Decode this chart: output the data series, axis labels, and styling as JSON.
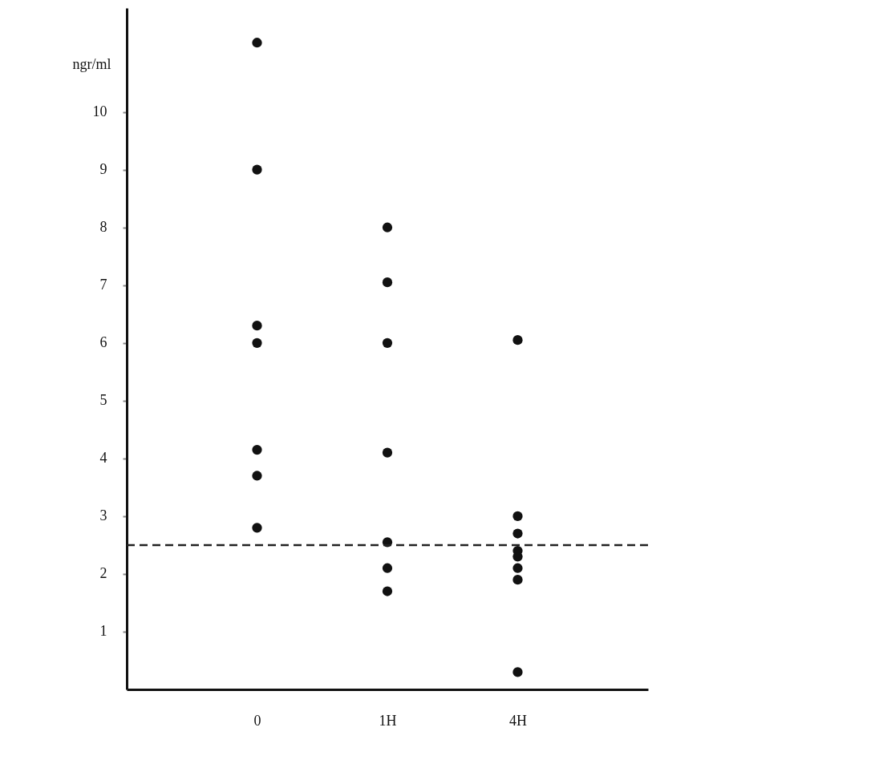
{
  "chart_data": {
    "type": "scatter",
    "ylabel": "ngr/ml",
    "categories": [
      "0",
      "1H",
      "4H"
    ],
    "series": [
      {
        "color": "#111111",
        "x": [
          "0",
          "0",
          "0",
          "0",
          "0",
          "0",
          "0",
          "1H",
          "1H",
          "1H",
          "1H",
          "1H",
          "1H",
          "1H",
          "4H",
          "4H",
          "4H",
          "4H",
          "4H",
          "4H",
          "4H",
          "4H"
        ],
        "values": [
          11.2,
          9.0,
          6.3,
          6.0,
          4.15,
          3.7,
          2.8,
          8.0,
          7.05,
          6.0,
          4.1,
          2.55,
          2.1,
          1.7,
          6.05,
          3.0,
          2.7,
          2.4,
          2.3,
          2.1,
          1.9,
          0.3
        ]
      }
    ],
    "ylim": [
      0,
      11.8
    ],
    "yticks": [
      1,
      2,
      3,
      4,
      5,
      6,
      7,
      8,
      9,
      10
    ],
    "ref_lines": [
      {
        "axis": "y",
        "value": 2.5,
        "color": "#222222",
        "line_style": "dashed"
      }
    ],
    "marker": "circle",
    "grid": false,
    "legend": false
  }
}
